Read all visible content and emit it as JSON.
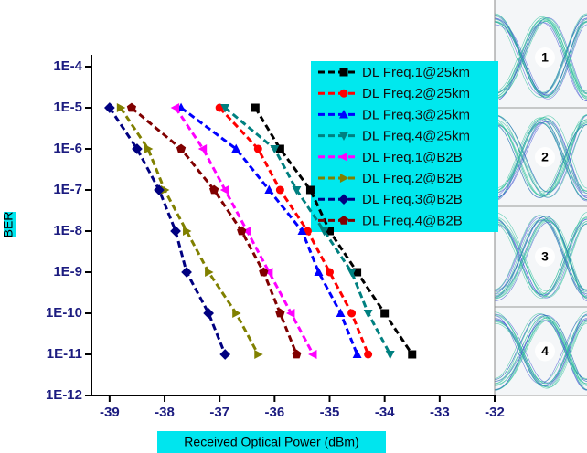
{
  "chart_data": {
    "type": "line",
    "xlabel": "Received Optical Power (dBm)",
    "ylabel": "BER",
    "xlim": [
      -39.33,
      -32
    ],
    "xticks": [
      -39,
      -38,
      -37,
      -36,
      -35,
      -34,
      -33,
      -32
    ],
    "ylim": [
      1e-12,
      0.0001
    ],
    "yscale": "log",
    "yticks": [
      {
        "value": 0.0001,
        "label": "1E-4"
      },
      {
        "value": 1e-05,
        "label": "1E-5"
      },
      {
        "value": 1e-06,
        "label": "1E-6"
      },
      {
        "value": 1e-07,
        "label": "1E-7"
      },
      {
        "value": 1e-08,
        "label": "1E-8"
      },
      {
        "value": 1e-09,
        "label": "1E-9"
      },
      {
        "value": 1e-10,
        "label": "1E-10"
      },
      {
        "value": 1e-11,
        "label": "1E-11"
      },
      {
        "value": 1e-12,
        "label": "1E-12"
      }
    ],
    "legend_position": "upper right",
    "series": [
      {
        "name": "DL Freq.1@25km",
        "color": "#000000",
        "marker": "square",
        "x": [
          -36.35,
          -35.9,
          -35.35,
          -35.0,
          -34.5,
          -34.0,
          -33.5
        ],
        "values": [
          1e-05,
          1e-06,
          1e-07,
          1e-08,
          1e-09,
          1e-10,
          1e-11
        ]
      },
      {
        "name": "DL Freq.2@25km",
        "color": "#ff0000",
        "marker": "circle",
        "x": [
          -37.0,
          -36.3,
          -35.9,
          -35.4,
          -35.0,
          -34.6,
          -34.3
        ],
        "values": [
          1e-05,
          1e-06,
          1e-07,
          1e-08,
          1e-09,
          1e-10,
          1e-11
        ]
      },
      {
        "name": "DL Freq.3@25km",
        "color": "#0000ff",
        "marker": "triangle-up",
        "x": [
          -37.7,
          -36.7,
          -36.1,
          -35.5,
          -35.2,
          -34.8,
          -34.5
        ],
        "values": [
          1e-05,
          1e-06,
          1e-07,
          1e-08,
          1e-09,
          1e-10,
          1e-11
        ]
      },
      {
        "name": "DL Freq.4@25km",
        "color": "#008080",
        "marker": "triangle-down",
        "x": [
          -36.9,
          -36.0,
          -35.6,
          -35.1,
          -34.6,
          -34.3,
          -33.9
        ],
        "values": [
          1e-05,
          1e-06,
          1e-07,
          1e-08,
          1e-09,
          1e-10,
          1e-11
        ]
      },
      {
        "name": "DL Freq.1@B2B",
        "color": "#ff00ff",
        "marker": "triangle-left",
        "x": [
          -37.8,
          -37.3,
          -36.9,
          -36.5,
          -36.1,
          -35.7,
          -35.3
        ],
        "values": [
          1e-05,
          1e-06,
          1e-07,
          1e-08,
          1e-09,
          1e-10,
          1e-11
        ]
      },
      {
        "name": "DL Freq.2@B2B",
        "color": "#808000",
        "marker": "triangle-right",
        "x": [
          -38.8,
          -38.3,
          -38.0,
          -37.6,
          -37.2,
          -36.7,
          -36.3
        ],
        "values": [
          1e-05,
          1e-06,
          1e-07,
          1e-08,
          1e-09,
          1e-10,
          1e-11
        ]
      },
      {
        "name": "DL Freq.3@B2B",
        "color": "#000080",
        "marker": "diamond",
        "x": [
          -39.0,
          -38.5,
          -38.1,
          -37.8,
          -37.6,
          -37.2,
          -36.9
        ],
        "values": [
          1e-05,
          1e-06,
          1e-07,
          1e-08,
          1e-09,
          1e-10,
          1e-11
        ]
      },
      {
        "name": "DL Freq.4@B2B",
        "color": "#800000",
        "marker": "pentagon",
        "x": [
          -38.6,
          -37.7,
          -37.1,
          -36.6,
          -36.2,
          -35.9,
          -35.6
        ],
        "values": [
          1e-05,
          1e-06,
          1e-07,
          1e-08,
          1e-09,
          1e-10,
          1e-11
        ]
      }
    ],
    "eye_labels": [
      "1",
      "2",
      "3",
      "4"
    ]
  }
}
